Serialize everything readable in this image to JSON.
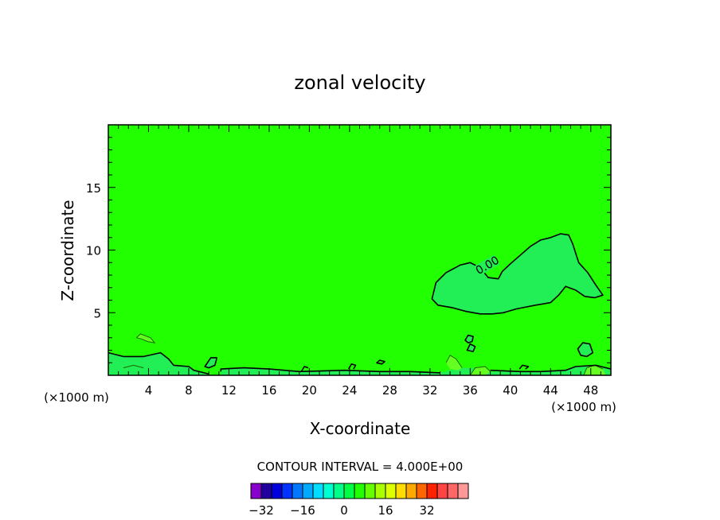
{
  "chart_data": {
    "type": "contour",
    "title": "zonal velocity",
    "xlabel": "X-coordinate",
    "ylabel": "Z-coordinate",
    "x_unit_left": "(×1000 m)",
    "x_unit_right": "(×1000 m)",
    "xlim": [
      0,
      50
    ],
    "ylim": [
      0,
      20
    ],
    "x_ticks": [
      4,
      8,
      12,
      16,
      20,
      24,
      28,
      32,
      36,
      40,
      44,
      48
    ],
    "y_ticks": [
      5,
      10,
      15
    ],
    "contour_interval_text": "CONTOUR INTERVAL = 4.000E+00",
    "contour_label": "0.00",
    "background_color": "#22ff00",
    "colorbar": {
      "ticks": [
        -32,
        -16,
        0,
        16,
        32
      ],
      "levels_min": -36,
      "levels_step": 4,
      "colors": [
        "#8800cc",
        "#2200a0",
        "#0000dd",
        "#0033ff",
        "#0077ff",
        "#00aaff",
        "#00ddff",
        "#00ffd0",
        "#00ff88",
        "#00ff44",
        "#22ff00",
        "#66ff00",
        "#aaff00",
        "#ddff00",
        "#ffdd00",
        "#ffaa00",
        "#ff6600",
        "#ff2200",
        "#ff4444",
        "#ff6666",
        "#ff9999"
      ]
    },
    "regions": [
      {
        "name": "mid-right blob",
        "color": "#22ee55",
        "points": [
          [
            32.2,
            6.1
          ],
          [
            32.6,
            7.4
          ],
          [
            33.6,
            8.2
          ],
          [
            35.0,
            8.8
          ],
          [
            36.0,
            9.0
          ],
          [
            37.0,
            8.6
          ],
          [
            37.8,
            7.8
          ],
          [
            38.8,
            7.7
          ],
          [
            39.2,
            8.3
          ],
          [
            40.0,
            8.9
          ],
          [
            41.0,
            9.6
          ],
          [
            42.0,
            10.3
          ],
          [
            43.0,
            10.8
          ],
          [
            44.0,
            11.0
          ],
          [
            45.0,
            11.3
          ],
          [
            45.8,
            11.2
          ],
          [
            46.2,
            10.5
          ],
          [
            46.8,
            9.0
          ],
          [
            47.7,
            8.2
          ],
          [
            48.5,
            7.2
          ],
          [
            49.2,
            6.4
          ],
          [
            48.4,
            6.2
          ],
          [
            47.4,
            6.3
          ],
          [
            46.5,
            6.8
          ],
          [
            45.5,
            7.1
          ],
          [
            44.8,
            6.4
          ],
          [
            44.0,
            5.8
          ],
          [
            42.5,
            5.6
          ],
          [
            40.6,
            5.3
          ],
          [
            39.3,
            5.0
          ],
          [
            38.2,
            4.9
          ],
          [
            37.0,
            4.9
          ],
          [
            35.6,
            5.1
          ],
          [
            34.2,
            5.4
          ],
          [
            32.8,
            5.6
          ]
        ]
      },
      {
        "name": "bottom-left patch",
        "color": "#22ee55",
        "points": [
          [
            0,
            1.8
          ],
          [
            1.5,
            1.5
          ],
          [
            3.5,
            1.5
          ],
          [
            5.2,
            1.8
          ],
          [
            6.0,
            1.3
          ],
          [
            6.5,
            0.8
          ],
          [
            8.0,
            0.7
          ],
          [
            8.5,
            0.4
          ],
          [
            10.0,
            0.1
          ],
          [
            10.0,
            0
          ],
          [
            0,
            0
          ]
        ]
      },
      {
        "name": "small cell 1",
        "color": "#22ee55",
        "points": [
          [
            9.6,
            0.7
          ],
          [
            10.2,
            1.4
          ],
          [
            10.8,
            1.4
          ],
          [
            10.6,
            0.8
          ],
          [
            10.0,
            0.6
          ]
        ]
      },
      {
        "name": "small cell 2",
        "color": "#22ee55",
        "points": [
          [
            46.7,
            2.1
          ],
          [
            47.2,
            2.6
          ],
          [
            47.9,
            2.5
          ],
          [
            48.2,
            1.8
          ],
          [
            47.6,
            1.5
          ],
          [
            47.0,
            1.6
          ]
        ]
      },
      {
        "name": "small cell 3",
        "color": "#22ee55",
        "points": [
          [
            35.5,
            2.8
          ],
          [
            35.8,
            3.2
          ],
          [
            36.3,
            3.1
          ],
          [
            36.2,
            2.7
          ],
          [
            35.8,
            2.6
          ]
        ]
      },
      {
        "name": "small cell 4",
        "color": "#22ee55",
        "points": [
          [
            35.7,
            2.0
          ],
          [
            36.0,
            2.5
          ],
          [
            36.5,
            2.3
          ],
          [
            36.3,
            1.9
          ]
        ]
      },
      {
        "name": "bottom strip",
        "color": "#22ee55",
        "points": [
          [
            11.2,
            0
          ],
          [
            11.2,
            0.5
          ],
          [
            13.5,
            0.6
          ],
          [
            16.0,
            0.5
          ],
          [
            19.0,
            0.3
          ],
          [
            23.5,
            0.4
          ],
          [
            27.0,
            0.3
          ],
          [
            30.0,
            0.3
          ],
          [
            33.0,
            0.2
          ],
          [
            35.0,
            0.6
          ],
          [
            37.0,
            0.6
          ],
          [
            38.0,
            0.3
          ],
          [
            41.0,
            0.3
          ],
          [
            43.0,
            0.3
          ],
          [
            45.5,
            0.4
          ],
          [
            46.5,
            0.7
          ],
          [
            48.5,
            0.8
          ],
          [
            50,
            0.5
          ],
          [
            50,
            0
          ]
        ]
      },
      {
        "name": "lighter patch A",
        "color": "#66ff22",
        "points": [
          [
            2.8,
            3.0
          ],
          [
            3.2,
            3.3
          ],
          [
            4.2,
            3.0
          ],
          [
            4.6,
            2.6
          ],
          [
            3.9,
            2.7
          ],
          [
            3.3,
            2.9
          ]
        ]
      },
      {
        "name": "lighter patch B",
        "color": "#66ff22",
        "points": [
          [
            33.6,
            1.0
          ],
          [
            34.0,
            1.6
          ],
          [
            34.6,
            1.3
          ],
          [
            35.2,
            0.6
          ],
          [
            34.8,
            0.4
          ],
          [
            34.0,
            0.5
          ]
        ]
      },
      {
        "name": "lighter patch C",
        "color": "#66ff22",
        "points": [
          [
            36.0,
            0.0
          ],
          [
            36.5,
            0.6
          ],
          [
            37.5,
            0.7
          ],
          [
            38.0,
            0.3
          ],
          [
            37.5,
            0.0
          ]
        ]
      },
      {
        "name": "lighter patch D",
        "color": "#66ff22",
        "points": [
          [
            47.3,
            0
          ],
          [
            47.6,
            0.6
          ],
          [
            48.4,
            0.8
          ],
          [
            49.2,
            0.5
          ],
          [
            49.5,
            0
          ]
        ]
      }
    ],
    "contours": [
      {
        "points": [
          [
            32.2,
            6.1
          ],
          [
            32.6,
            7.4
          ],
          [
            33.6,
            8.2
          ],
          [
            35.0,
            8.8
          ],
          [
            36.0,
            9.0
          ],
          [
            37.0,
            8.6
          ],
          [
            37.8,
            7.8
          ],
          [
            38.8,
            7.7
          ],
          [
            39.2,
            8.3
          ],
          [
            40.0,
            8.9
          ],
          [
            41.0,
            9.6
          ],
          [
            42.0,
            10.3
          ],
          [
            43.0,
            10.8
          ],
          [
            44.0,
            11.0
          ],
          [
            45.0,
            11.3
          ],
          [
            45.8,
            11.2
          ],
          [
            46.2,
            10.5
          ],
          [
            46.8,
            9.0
          ],
          [
            47.7,
            8.2
          ],
          [
            48.5,
            7.2
          ],
          [
            49.2,
            6.4
          ],
          [
            48.4,
            6.2
          ],
          [
            47.4,
            6.3
          ],
          [
            46.5,
            6.8
          ],
          [
            45.5,
            7.1
          ],
          [
            44.8,
            6.4
          ],
          [
            44.0,
            5.8
          ],
          [
            42.5,
            5.6
          ],
          [
            40.6,
            5.3
          ],
          [
            39.3,
            5.0
          ],
          [
            38.2,
            4.9
          ],
          [
            37.0,
            4.9
          ],
          [
            35.6,
            5.1
          ],
          [
            34.2,
            5.4
          ],
          [
            32.8,
            5.6
          ],
          [
            32.2,
            6.1
          ]
        ],
        "closed": true
      },
      {
        "points": [
          [
            0,
            1.8
          ],
          [
            1.5,
            1.5
          ],
          [
            3.5,
            1.5
          ],
          [
            5.2,
            1.8
          ],
          [
            6.0,
            1.3
          ],
          [
            6.5,
            0.8
          ],
          [
            8.0,
            0.7
          ],
          [
            8.5,
            0.4
          ],
          [
            10.0,
            0.1
          ]
        ],
        "closed": false
      },
      {
        "points": [
          [
            9.6,
            0.7
          ],
          [
            10.2,
            1.4
          ],
          [
            10.8,
            1.4
          ],
          [
            10.6,
            0.8
          ],
          [
            10.0,
            0.6
          ],
          [
            9.6,
            0.7
          ]
        ],
        "closed": true
      },
      {
        "points": [
          [
            46.7,
            2.1
          ],
          [
            47.2,
            2.6
          ],
          [
            47.9,
            2.5
          ],
          [
            48.2,
            1.8
          ],
          [
            47.6,
            1.5
          ],
          [
            47.0,
            1.6
          ],
          [
            46.7,
            2.1
          ]
        ],
        "closed": true
      },
      {
        "points": [
          [
            35.5,
            2.8
          ],
          [
            35.8,
            3.2
          ],
          [
            36.3,
            3.1
          ],
          [
            36.2,
            2.7
          ],
          [
            35.8,
            2.6
          ],
          [
            35.5,
            2.8
          ]
        ],
        "closed": true
      },
      {
        "points": [
          [
            35.7,
            2.0
          ],
          [
            36.0,
            2.5
          ],
          [
            36.5,
            2.3
          ],
          [
            36.3,
            1.9
          ],
          [
            35.7,
            2.0
          ]
        ],
        "closed": true
      },
      {
        "points": [
          [
            11.2,
            0.3
          ],
          [
            11.2,
            0.5
          ],
          [
            13.5,
            0.6
          ],
          [
            16.0,
            0.5
          ],
          [
            19.0,
            0.3
          ],
          [
            23.5,
            0.4
          ],
          [
            27.0,
            0.3
          ],
          [
            30.0,
            0.3
          ],
          [
            33.0,
            0.2
          ]
        ],
        "closed": false
      },
      {
        "points": [
          [
            38.0,
            0.4
          ],
          [
            41.0,
            0.3
          ],
          [
            43.0,
            0.3
          ],
          [
            45.5,
            0.4
          ],
          [
            46.5,
            0.7
          ],
          [
            48.5,
            0.8
          ],
          [
            50,
            0.5
          ]
        ],
        "closed": false
      },
      {
        "points": [
          [
            23.9,
            0.5
          ],
          [
            24.2,
            0.9
          ],
          [
            24.6,
            0.8
          ],
          [
            24.4,
            0.5
          ]
        ],
        "closed": false
      },
      {
        "points": [
          [
            26.7,
            1.0
          ],
          [
            27.0,
            1.2
          ],
          [
            27.5,
            1.1
          ],
          [
            27.2,
            0.9
          ],
          [
            26.7,
            1.0
          ]
        ],
        "closed": true
      },
      {
        "points": [
          [
            40.9,
            0.5
          ],
          [
            41.2,
            0.8
          ],
          [
            41.8,
            0.7
          ],
          [
            41.5,
            0.5
          ]
        ],
        "closed": false
      },
      {
        "points": [
          [
            19.2,
            0.3
          ],
          [
            19.5,
            0.7
          ],
          [
            19.9,
            0.6
          ]
        ],
        "closed": false
      }
    ],
    "thin_contours": [
      {
        "points": [
          [
            2.8,
            3.0
          ],
          [
            3.2,
            3.3
          ],
          [
            4.2,
            3.0
          ],
          [
            4.6,
            2.6
          ],
          [
            3.9,
            2.7
          ],
          [
            3.3,
            2.9
          ],
          [
            2.8,
            3.0
          ]
        ]
      },
      {
        "points": [
          [
            33.6,
            1.0
          ],
          [
            34.0,
            1.6
          ],
          [
            34.6,
            1.3
          ],
          [
            35.2,
            0.6
          ]
        ]
      },
      {
        "points": [
          [
            36.0,
            0.0
          ],
          [
            36.5,
            0.6
          ],
          [
            37.5,
            0.7
          ],
          [
            38.0,
            0.3
          ]
        ]
      },
      {
        "points": [
          [
            47.3,
            0
          ],
          [
            47.6,
            0.6
          ],
          [
            48.4,
            0.8
          ],
          [
            49.2,
            0.5
          ]
        ]
      },
      {
        "points": [
          [
            1.5,
            0.6
          ],
          [
            2.5,
            0.8
          ],
          [
            3.5,
            0.6
          ]
        ]
      }
    ]
  }
}
